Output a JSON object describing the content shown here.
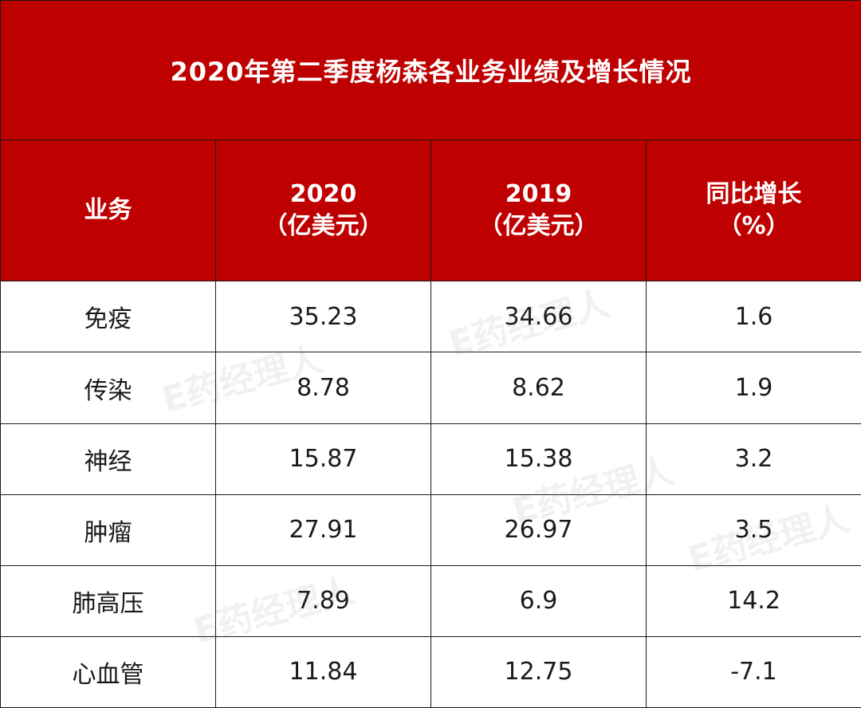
{
  "table": {
    "title": "2020年第二季度杨森各业务业绩及增长情况",
    "headers": [
      {
        "line1": "业务",
        "line2": ""
      },
      {
        "line1": "2020",
        "line2": "（亿美元）"
      },
      {
        "line1": "2019",
        "line2": "（亿美元）"
      },
      {
        "line1": "同比增长",
        "line2": "（%）"
      }
    ],
    "rows": [
      {
        "segment": "免疫",
        "v2020": "35.23",
        "v2019": "34.66",
        "growth": "1.6"
      },
      {
        "segment": "传染",
        "v2020": "8.78",
        "v2019": "8.62",
        "growth": "1.9"
      },
      {
        "segment": "神经",
        "v2020": "15.87",
        "v2019": "15.38",
        "growth": "3.2"
      },
      {
        "segment": "肿瘤",
        "v2020": "27.91",
        "v2019": "26.97",
        "growth": "3.5"
      },
      {
        "segment": "肺高压",
        "v2020": "7.89",
        "v2019": "6.9",
        "growth": "14.2"
      },
      {
        "segment": "心血管",
        "v2020": "11.84",
        "v2019": "12.75",
        "growth": "-7.1"
      }
    ]
  },
  "watermark": {
    "text": "E药经理人"
  },
  "colors": {
    "header_bg": "#bf0000",
    "header_text": "#ffffff",
    "body_text": "#1a1a1a"
  }
}
